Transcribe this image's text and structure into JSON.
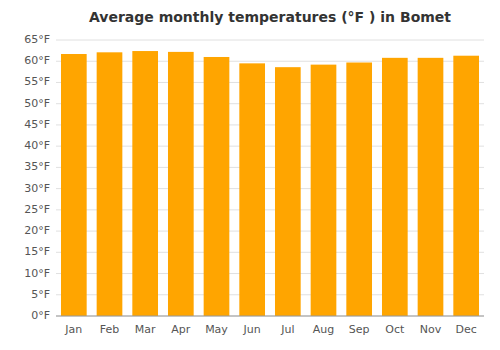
{
  "chart_data": {
    "type": "bar",
    "title": "Average monthly temperatures (°F ) in Bomet",
    "categories": [
      "Jan",
      "Feb",
      "Mar",
      "Apr",
      "May",
      "Jun",
      "Jul",
      "Aug",
      "Sep",
      "Oct",
      "Nov",
      "Dec"
    ],
    "values": [
      61.7,
      62.1,
      62.4,
      62.2,
      61.0,
      59.5,
      58.6,
      59.2,
      59.7,
      60.8,
      60.8,
      61.3
    ],
    "color": "#FFA500",
    "ylim": [
      0,
      65
    ],
    "yticks": [
      {
        "value": 0,
        "label": "0°F"
      },
      {
        "value": 5,
        "label": "5°F"
      },
      {
        "value": 10,
        "label": "10°F"
      },
      {
        "value": 15,
        "label": "15°F"
      },
      {
        "value": 20,
        "label": "20°F"
      },
      {
        "value": 25,
        "label": "25°F"
      },
      {
        "value": 30,
        "label": "30°F"
      },
      {
        "value": 35,
        "label": "35°F"
      },
      {
        "value": 40,
        "label": "40°F"
      },
      {
        "value": 45,
        "label": "45°F"
      },
      {
        "value": 50,
        "label": "50°F"
      },
      {
        "value": 55,
        "label": "55°F"
      },
      {
        "value": 60,
        "label": "60°F"
      },
      {
        "value": 65,
        "label": "65°F"
      }
    ],
    "grid": true
  }
}
